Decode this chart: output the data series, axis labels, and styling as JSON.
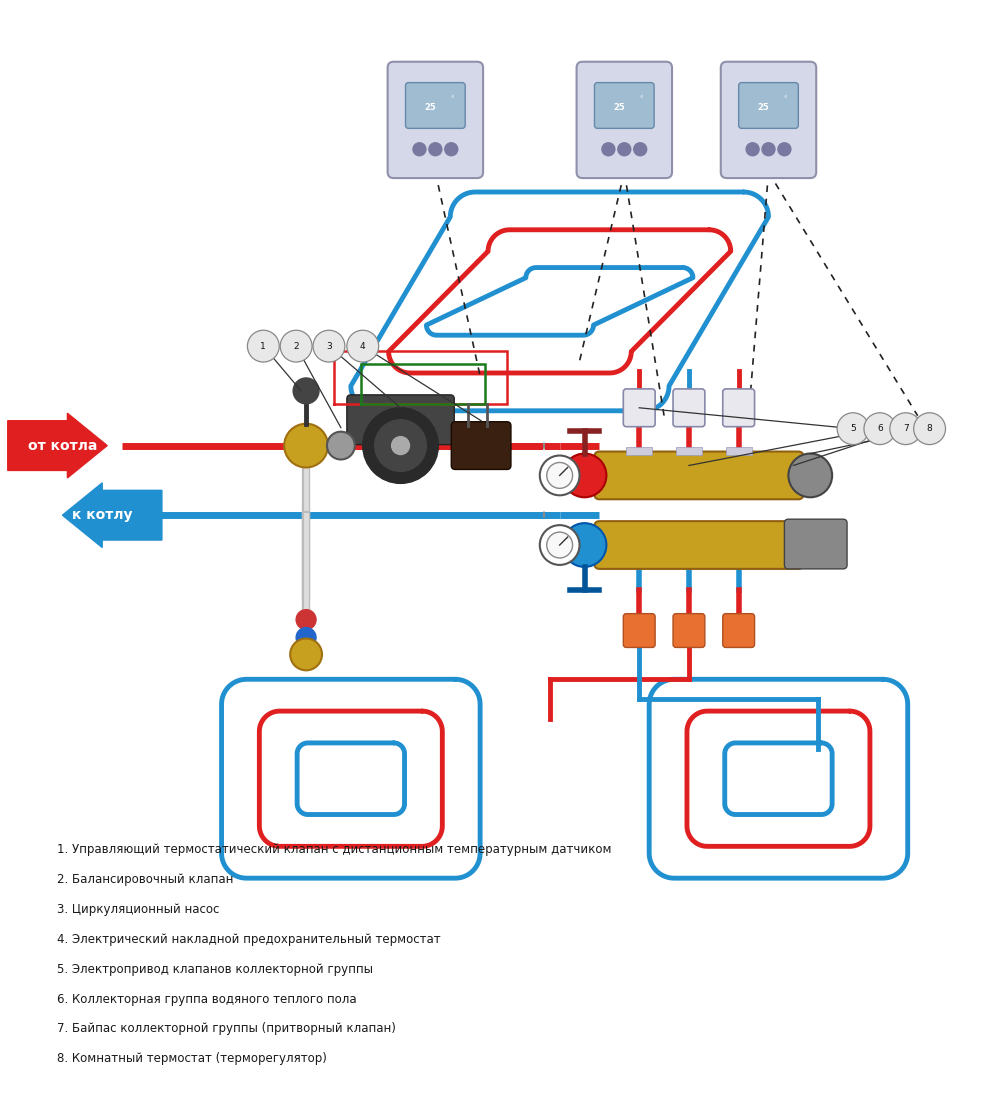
{
  "background_color": "#ffffff",
  "legend_items": [
    "1. Управляющий термостатический клапан с дистанционным температурным датчиком",
    "2. Балансировочный клапан",
    "3. Циркуляционный насос",
    "4. Электрический накладной предохранительный термостат",
    "5. Электропривод клапанов коллекторной группы",
    "6. Коллекторная группа водяного теплого пола",
    "7. Байпас коллекторной группы (притворный клапан)",
    "8. Комнатный термостат (терморегулятор)"
  ],
  "red_color": "#e02020",
  "blue_color": "#2090d0",
  "green_color": "#1a7a1a",
  "gold_color": "#c8a020",
  "label_from_boiler": "от котла",
  "label_to_boiler": "к котлу"
}
